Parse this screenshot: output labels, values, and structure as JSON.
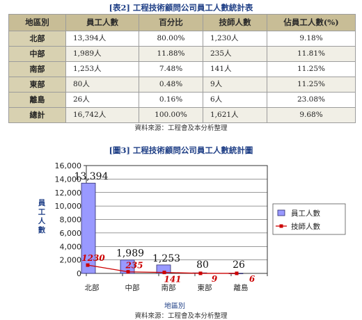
{
  "table": {
    "title": "[表2] 工程技術顧問公司員工人數統計表",
    "headers": [
      "地區別",
      "員工人數",
      "百分比",
      "技師人數",
      "佔員工人數(%)"
    ],
    "rows": [
      [
        "北部",
        "13,394人",
        "80.00%",
        "1,230人",
        "9.18%"
      ],
      [
        "中部",
        "1,989人",
        "11.88%",
        "235人",
        "11.81%"
      ],
      [
        "南部",
        "1,253人",
        "7.48%",
        "141人",
        "11.25%"
      ],
      [
        "東部",
        "80人",
        "0.48%",
        "9人",
        "11.25%"
      ],
      [
        "離島",
        "26人",
        "0.16%",
        "6人",
        "23.08%"
      ],
      [
        "總計",
        "16,742人",
        "100.00%",
        "1,621人",
        "9.68%"
      ]
    ],
    "source": "資料來源：工程會及本分析整理"
  },
  "chart": {
    "title": "[圖3] 工程技術顧問公司員工人數統計圖",
    "source": "資料來源：工程會及本分析整理"
  },
  "chart_data": {
    "type": "bar",
    "title": "[圖3] 工程技術顧問公司員工人數統計圖",
    "categories": [
      "北部",
      "中部",
      "南部",
      "東部",
      "離島"
    ],
    "series": [
      {
        "name": "員工人數",
        "type": "bar",
        "values": [
          13394,
          1989,
          1253,
          80,
          26
        ],
        "color": "#9999ff"
      },
      {
        "name": "技師人數",
        "type": "line",
        "values": [
          1230,
          235,
          141,
          9,
          6
        ],
        "color": "#cc0000"
      }
    ],
    "bar_labels": [
      "13,394",
      "1,989",
      "1,253",
      "80",
      "26"
    ],
    "line_labels": [
      "1230",
      "235",
      "141",
      "9",
      "6"
    ],
    "xlabel": "地區別",
    "ylabel": "員工人數",
    "ylim": [
      0,
      16000
    ],
    "yticks": [
      0,
      2000,
      4000,
      6000,
      8000,
      10000,
      12000,
      14000,
      16000
    ],
    "ytick_labels": [
      "0",
      "2,000",
      "4,000",
      "6,000",
      "8,000",
      "10,000",
      "12,000",
      "14,000",
      "16,000"
    ],
    "legend_position": "right",
    "grid": true
  }
}
